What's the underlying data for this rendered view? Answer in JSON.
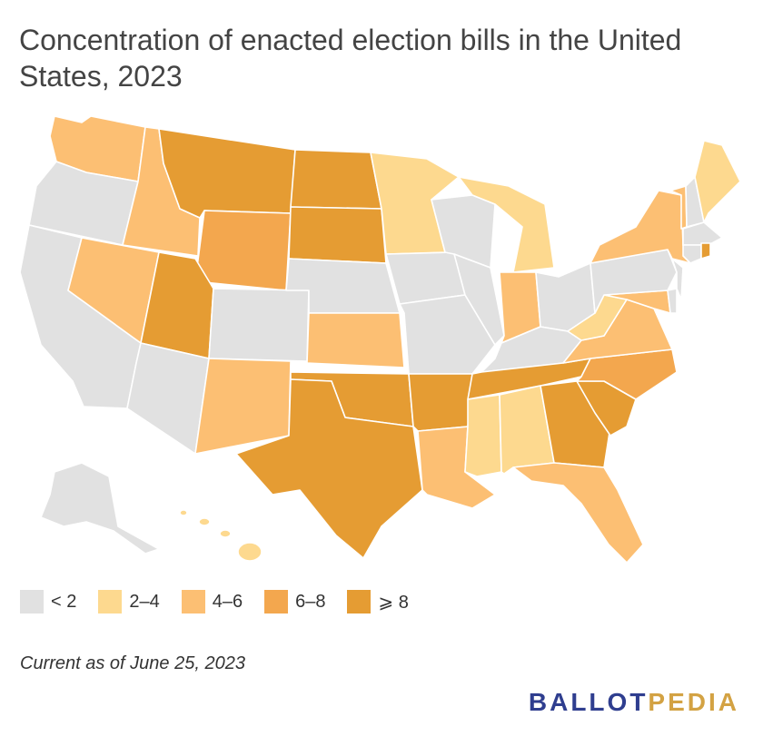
{
  "title": "Concentration of enacted election bills in the United States, 2023",
  "note": "Current as of June 25, 2023",
  "brand": {
    "part1": "BALLOT",
    "part2": "PEDIA",
    "color1": "#2f3e8f",
    "color2": "#d3a243"
  },
  "legend": [
    {
      "label": "< 2",
      "color": "#e1e1e1"
    },
    {
      "label": "2–4",
      "color": "#fdd98f"
    },
    {
      "label": "4–6",
      "color": "#fcbf73"
    },
    {
      "label": "6–8",
      "color": "#f3a74e"
    },
    {
      "label": "⩾ 8",
      "color": "#e59c33"
    }
  ],
  "states": {
    "WA": 2,
    "OR": 0,
    "CA": 0,
    "ID": 2,
    "NV": 2,
    "MT": 4,
    "WY": 3,
    "UT": 4,
    "AZ": 0,
    "CO": 0,
    "NM": 2,
    "ND": 4,
    "SD": 4,
    "NE": 0,
    "KS": 2,
    "OK": 4,
    "TX": 4,
    "MN": 1,
    "IA": 0,
    "MO": 0,
    "AR": 4,
    "LA": 2,
    "WI": 0,
    "IL": 0,
    "MI": 1,
    "IN": 2,
    "OH": 0,
    "KY": 0,
    "TN": 4,
    "MS": 1,
    "AL": 1,
    "GA": 4,
    "FL": 2,
    "SC": 4,
    "NC": 3,
    "VA": 2,
    "WV": 1,
    "MD": 2,
    "DE": 0,
    "NJ": 0,
    "PA": 0,
    "NY": 2,
    "VT": 2,
    "NH": 0,
    "ME": 1,
    "MA": 0,
    "CT": 0,
    "RI": 4,
    "AK": 0,
    "HI": 1
  }
}
